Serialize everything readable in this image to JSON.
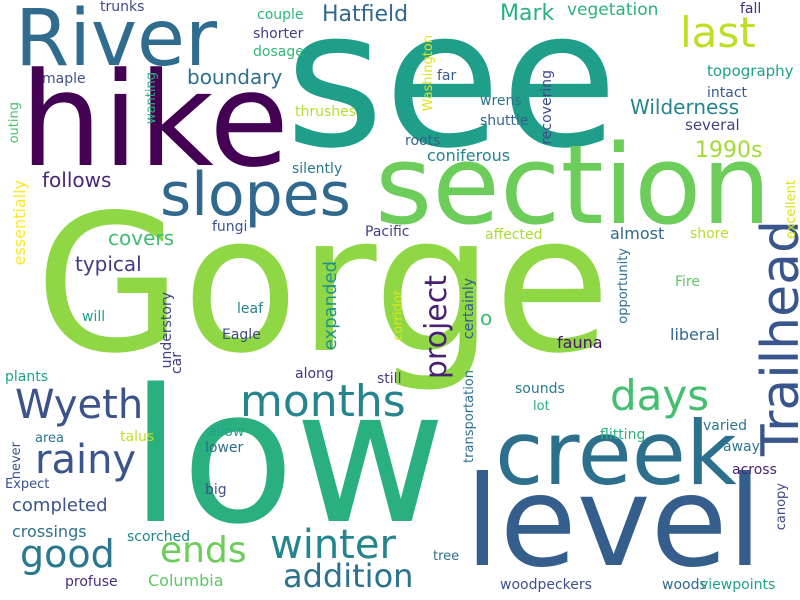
{
  "words": [
    {
      "text": "see",
      "color": "#1f9e89"
    },
    {
      "text": "Gorge",
      "color": "#8fd744"
    },
    {
      "text": "low",
      "color": "#2ab07f"
    },
    {
      "text": "hike",
      "color": "#440154"
    },
    {
      "text": "section",
      "color": "#6ccd5a"
    },
    {
      "text": "level",
      "color": "#355e8d"
    },
    {
      "text": "creek",
      "color": "#2d708e"
    },
    {
      "text": "River",
      "color": "#2f6c8e"
    },
    {
      "text": "slopes",
      "color": "#31688e"
    },
    {
      "text": "Trailhead",
      "color": "#39568c"
    },
    {
      "text": "months",
      "color": "#25848e"
    },
    {
      "text": "days",
      "color": "#44bf70"
    },
    {
      "text": "Wyeth",
      "color": "#3b528b"
    },
    {
      "text": "rainy",
      "color": "#39558c"
    },
    {
      "text": "winter",
      "color": "#25858e"
    },
    {
      "text": "good",
      "color": "#2a788e"
    },
    {
      "text": "ends",
      "color": "#6ccd5a"
    },
    {
      "text": "addition",
      "color": "#2c728e"
    },
    {
      "text": "project",
      "color": "#482173"
    },
    {
      "text": "last",
      "color": "#bddf26"
    },
    {
      "text": "Hatfield",
      "color": "#31688e"
    },
    {
      "text": "Mark",
      "color": "#2ab07f"
    },
    {
      "text": "vegetation",
      "color": "#2db27d"
    },
    {
      "text": "fall",
      "color": "#472c7a"
    },
    {
      "text": "trunks",
      "color": "#3e4989"
    },
    {
      "text": "couple",
      "color": "#2fb47c"
    },
    {
      "text": "shorter",
      "color": "#424086"
    },
    {
      "text": "dosage",
      "color": "#35b779"
    },
    {
      "text": "boundary",
      "color": "#2e6f8e"
    },
    {
      "text": "topography",
      "color": "#1fa187"
    },
    {
      "text": "Wilderness",
      "color": "#25848e"
    },
    {
      "text": "several",
      "color": "#414487"
    },
    {
      "text": "intact",
      "color": "#38588c"
    },
    {
      "text": "1990s",
      "color": "#a2da37"
    },
    {
      "text": "coniferous",
      "color": "#25848e"
    },
    {
      "text": "roots",
      "color": "#33638d"
    },
    {
      "text": "follows",
      "color": "#482878"
    },
    {
      "text": "essentially",
      "color": "#fde725"
    },
    {
      "text": "covers",
      "color": "#3fbc73"
    },
    {
      "text": "typical",
      "color": "#443983"
    },
    {
      "text": "expanded",
      "color": "#20928c"
    },
    {
      "text": "certainly",
      "color": "#38588c"
    },
    {
      "text": "o",
      "color": "#3fbc73"
    },
    {
      "text": "fauna",
      "color": "#481769"
    },
    {
      "text": "liberal",
      "color": "#31688e"
    },
    {
      "text": "opportunity",
      "color": "#2e6f8e"
    },
    {
      "text": "Fire",
      "color": "#5ec962"
    },
    {
      "text": "almost",
      "color": "#31688e"
    },
    {
      "text": "affected",
      "color": "#a8db34"
    },
    {
      "text": "shore",
      "color": "#b5de2b"
    },
    {
      "text": "Pacific",
      "color": "#424086"
    },
    {
      "text": "fungi",
      "color": "#3b528b"
    },
    {
      "text": "leaf",
      "color": "#25848e"
    },
    {
      "text": "Eagle",
      "color": "#3e4989"
    },
    {
      "text": "will",
      "color": "#1fa088"
    },
    {
      "text": "completed",
      "color": "#3b528b"
    },
    {
      "text": "crossings",
      "color": "#2d718e"
    },
    {
      "text": "Columbia",
      "color": "#5ec962"
    },
    {
      "text": "maple",
      "color": "#3b528b"
    },
    {
      "text": "outing",
      "color": "#4ac16d"
    },
    {
      "text": "wanting",
      "color": "#2ab07f"
    },
    {
      "text": "thrushes",
      "color": "#b5de2b"
    },
    {
      "text": "silently",
      "color": "#2a778e"
    },
    {
      "text": "Washington",
      "color": "#dfe318"
    },
    {
      "text": "far",
      "color": "#375a8c"
    },
    {
      "text": "wrens",
      "color": "#2c728e"
    },
    {
      "text": "shuttle",
      "color": "#33638d"
    },
    {
      "text": "recovering",
      "color": "#3e4989"
    },
    {
      "text": "excellent",
      "color": "#d8e219"
    },
    {
      "text": "canopy",
      "color": "#3e4a89"
    },
    {
      "text": "along",
      "color": "#46337e"
    },
    {
      "text": "still",
      "color": "#424086"
    },
    {
      "text": "plants",
      "color": "#1fa188"
    },
    {
      "text": "understory",
      "color": "#414487"
    },
    {
      "text": "car",
      "color": "#453781"
    },
    {
      "text": "corridor",
      "color": "#dde318"
    },
    {
      "text": "sounds",
      "color": "#287c8e"
    },
    {
      "text": "lot",
      "color": "#26ad81"
    },
    {
      "text": "transportation",
      "color": "#2d708e"
    },
    {
      "text": "allow",
      "color": "#20a386"
    },
    {
      "text": "lower",
      "color": "#2e6d8e"
    },
    {
      "text": "talus",
      "color": "#bddf26"
    },
    {
      "text": "area",
      "color": "#2c738e"
    },
    {
      "text": "never",
      "color": "#3a548c"
    },
    {
      "text": "Expect",
      "color": "#3b528b"
    },
    {
      "text": "scorched",
      "color": "#25848e"
    },
    {
      "text": "big",
      "color": "#3b528b"
    },
    {
      "text": "varied",
      "color": "#2a778e"
    },
    {
      "text": "away",
      "color": "#29798e"
    },
    {
      "text": "flitting",
      "color": "#2db27d"
    },
    {
      "text": "across",
      "color": "#482475"
    },
    {
      "text": "tree",
      "color": "#2e6e8e"
    },
    {
      "text": "profuse",
      "color": "#472d7b"
    },
    {
      "text": "woodpeckers",
      "color": "#3b528b"
    },
    {
      "text": "woods",
      "color": "#31678e"
    },
    {
      "text": "viewpoints",
      "color": "#1fa187"
    }
  ]
}
